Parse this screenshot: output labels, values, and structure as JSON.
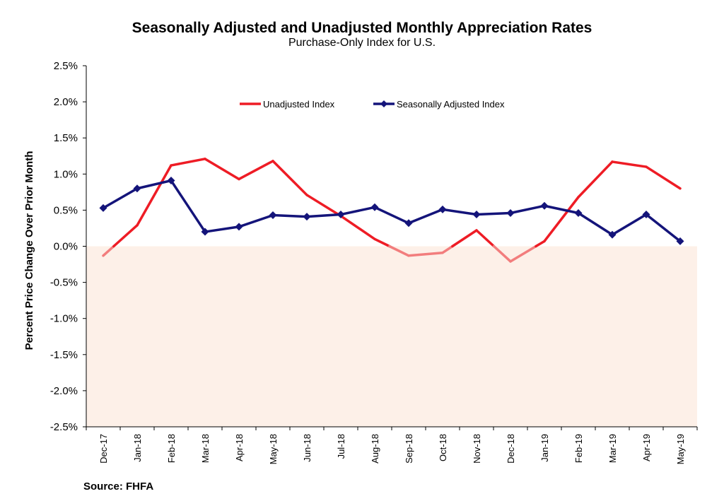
{
  "source": "Source: FHFA",
  "chart_data": {
    "type": "line",
    "title": "Seasonally Adjusted and Unadjusted Monthly Appreciation Rates",
    "subtitle": "Purchase-Only Index for U.S.",
    "xlabel": "",
    "ylabel": "Percent Price Change Over Prior Month",
    "categories": [
      "Dec-17",
      "Jan-18",
      "Feb-18",
      "Mar-18",
      "Apr-18",
      "May-18",
      "Jun-18",
      "Jul-18",
      "Aug-18",
      "Sep-18",
      "Oct-18",
      "Nov-18",
      "Dec-18",
      "Jan-19",
      "Feb-19",
      "Mar-19",
      "Apr-19",
      "May-19"
    ],
    "ylim": [
      -0.025,
      0.025
    ],
    "yticks": [
      "2.5%",
      "2.0%",
      "1.5%",
      "1.0%",
      "0.5%",
      "0.0%",
      "-0.5%",
      "-1.0%",
      "-1.5%",
      "-2.0%",
      "-2.5%"
    ],
    "legend_position": "top",
    "grid": false,
    "negative_region_color": "#fdf0e8",
    "series": [
      {
        "name": "Unadjusted Index",
        "color": "#ee1c25",
        "negative_color": "#f27d7d",
        "marker": "none",
        "values": [
          -0.0013,
          0.0029,
          0.0112,
          0.0121,
          0.0093,
          0.0118,
          0.0071,
          0.0042,
          0.001,
          -0.0013,
          -0.0009,
          0.0022,
          -0.0021,
          0.0007,
          0.0068,
          0.0117,
          0.011,
          0.008
        ]
      },
      {
        "name": "Seasonally Adjusted Index",
        "color": "#14147a",
        "marker": "diamond",
        "values": [
          0.0053,
          0.008,
          0.0091,
          0.002,
          0.0027,
          0.0043,
          0.0041,
          0.0044,
          0.0054,
          0.0032,
          0.0051,
          0.0044,
          0.0046,
          0.0056,
          0.0046,
          0.0016,
          0.0044,
          0.0007
        ]
      }
    ]
  }
}
